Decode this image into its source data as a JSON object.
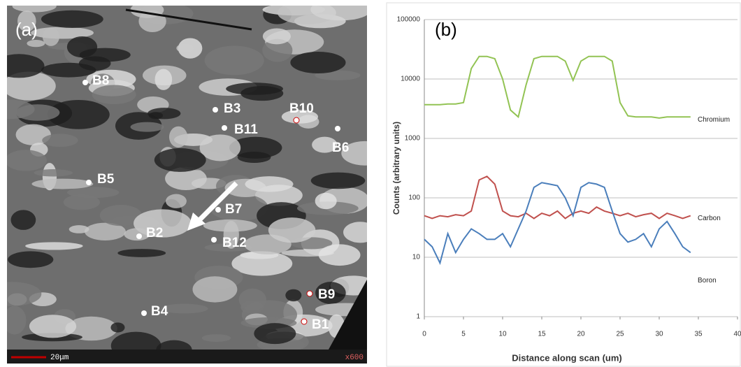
{
  "micrograph": {
    "label": "(a)",
    "scale_bar": "20μm",
    "magnification": "x600",
    "points": [
      "B1",
      "B2",
      "B3",
      "B4",
      "B5",
      "B6",
      "B7",
      "B8",
      "B9",
      "B10",
      "B11",
      "B12"
    ]
  },
  "chart_data": {
    "type": "line",
    "label": "(b)",
    "x_label": "Distance along scan (um)",
    "y_label": "Counts (arbitrary units)",
    "log_scale": true,
    "grid": true,
    "xlim": [
      0,
      40
    ],
    "xticks": [
      0,
      5,
      10,
      15,
      20,
      25,
      30,
      35,
      40
    ],
    "ylim": [
      1,
      100000
    ],
    "yticks": [
      1,
      10,
      100,
      1000,
      10000,
      100000
    ],
    "x": [
      0,
      1,
      2,
      3,
      4,
      5,
      6,
      7,
      8,
      9,
      10,
      11,
      12,
      13,
      14,
      15,
      16,
      17,
      18,
      19,
      20,
      21,
      22,
      23,
      24,
      25,
      26,
      27,
      28,
      29,
      30,
      31,
      32,
      33,
      34
    ],
    "series": [
      {
        "name": "Chromium",
        "color": "#92c353",
        "values": [
          3700,
          3700,
          3700,
          3800,
          3800,
          4000,
          15000,
          24000,
          24000,
          22000,
          10000,
          3000,
          2300,
          8000,
          22000,
          24000,
          24000,
          24000,
          20000,
          9500,
          20000,
          24000,
          24000,
          24000,
          20000,
          4000,
          2400,
          2300,
          2300,
          2300,
          2200,
          2300,
          2300,
          2300,
          2300
        ]
      },
      {
        "name": "Carbon",
        "color": "#c0504d",
        "values": [
          50,
          45,
          50,
          48,
          52,
          50,
          60,
          200,
          230,
          170,
          60,
          50,
          48,
          55,
          45,
          55,
          50,
          60,
          45,
          55,
          60,
          55,
          70,
          60,
          55,
          50,
          55,
          48,
          52,
          55,
          45,
          55,
          50,
          45,
          50
        ]
      },
      {
        "name": "Boron",
        "color": "#4a7ebb",
        "values": [
          20,
          15,
          8,
          25,
          12,
          20,
          30,
          25,
          20,
          20,
          25,
          15,
          30,
          60,
          150,
          180,
          170,
          160,
          100,
          50,
          150,
          180,
          170,
          150,
          60,
          25,
          18,
          20,
          25,
          15,
          30,
          40,
          25,
          15,
          12
        ]
      }
    ]
  }
}
